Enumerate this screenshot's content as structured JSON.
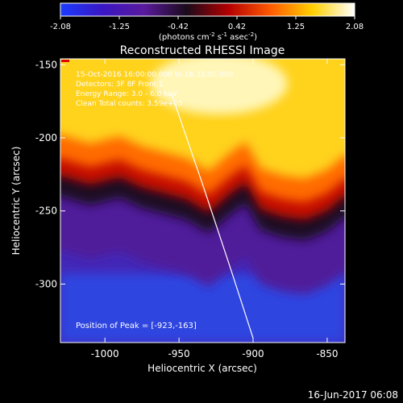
{
  "colorbar": {
    "ticks": [
      "-2.08",
      "-1.25",
      "-0.42",
      "0.42",
      "1.25",
      "2.08"
    ],
    "unit_main": "(photons cm",
    "unit_exp1": "-2",
    "unit_s": " s",
    "unit_exp2": "-1",
    "unit_asec": " asec",
    "unit_exp3": "-2",
    "unit_close": ")",
    "colors": [
      "#1a3cff",
      "#3a16c4",
      "#5a1a9c",
      "#1a0a1a",
      "#b40000",
      "#ff5a00",
      "#ffd000",
      "#ffffff"
    ]
  },
  "chart_data": {
    "type": "heatmap",
    "title": "Reconstructed RHESSI Image",
    "xlabel": "Heliocentric X (arcsec)",
    "ylabel": "Heliocentric Y (arcsec)",
    "xlim": [
      -1030,
      -838
    ],
    "ylim": [
      -340,
      -146
    ],
    "x_ticks": [
      -1000,
      -950,
      -900,
      -850
    ],
    "y_ticks": [
      -150,
      -200,
      -250,
      -300
    ],
    "x_tick_labels": [
      "-1000",
      "-950",
      "-900",
      "-850"
    ],
    "y_tick_labels": [
      "-150",
      "-200",
      "-250",
      "-300"
    ],
    "boundary_x": [
      -1030,
      -1010,
      -990,
      -975,
      -960,
      -945,
      -930,
      -915,
      -905,
      -895,
      -880,
      -865,
      -850,
      -838
    ],
    "boundary_y": [
      -232,
      -238,
      -233,
      -240,
      -244,
      -248,
      -257,
      -244,
      -237,
      -255,
      -260,
      -262,
      -256,
      -246
    ],
    "limb_line": [
      [
        -955,
        -170
      ],
      [
        -934,
        -232
      ],
      [
        -915,
        -290
      ],
      [
        -900,
        -337
      ]
    ],
    "peak": [
      -923,
      -163
    ],
    "info_lines": [
      "15-Oct-2016 16:00:00.000 to 16:35:00.000",
      "Detectors: 3F 8F Front 1",
      "Energy Range: 3.0 - 6.0 keV",
      "Clean    Total counts: 3.59e+05"
    ],
    "peak_label": "Position of Peak = [-923,-163]"
  },
  "timestamp": "16-Jun-2017 06:08"
}
